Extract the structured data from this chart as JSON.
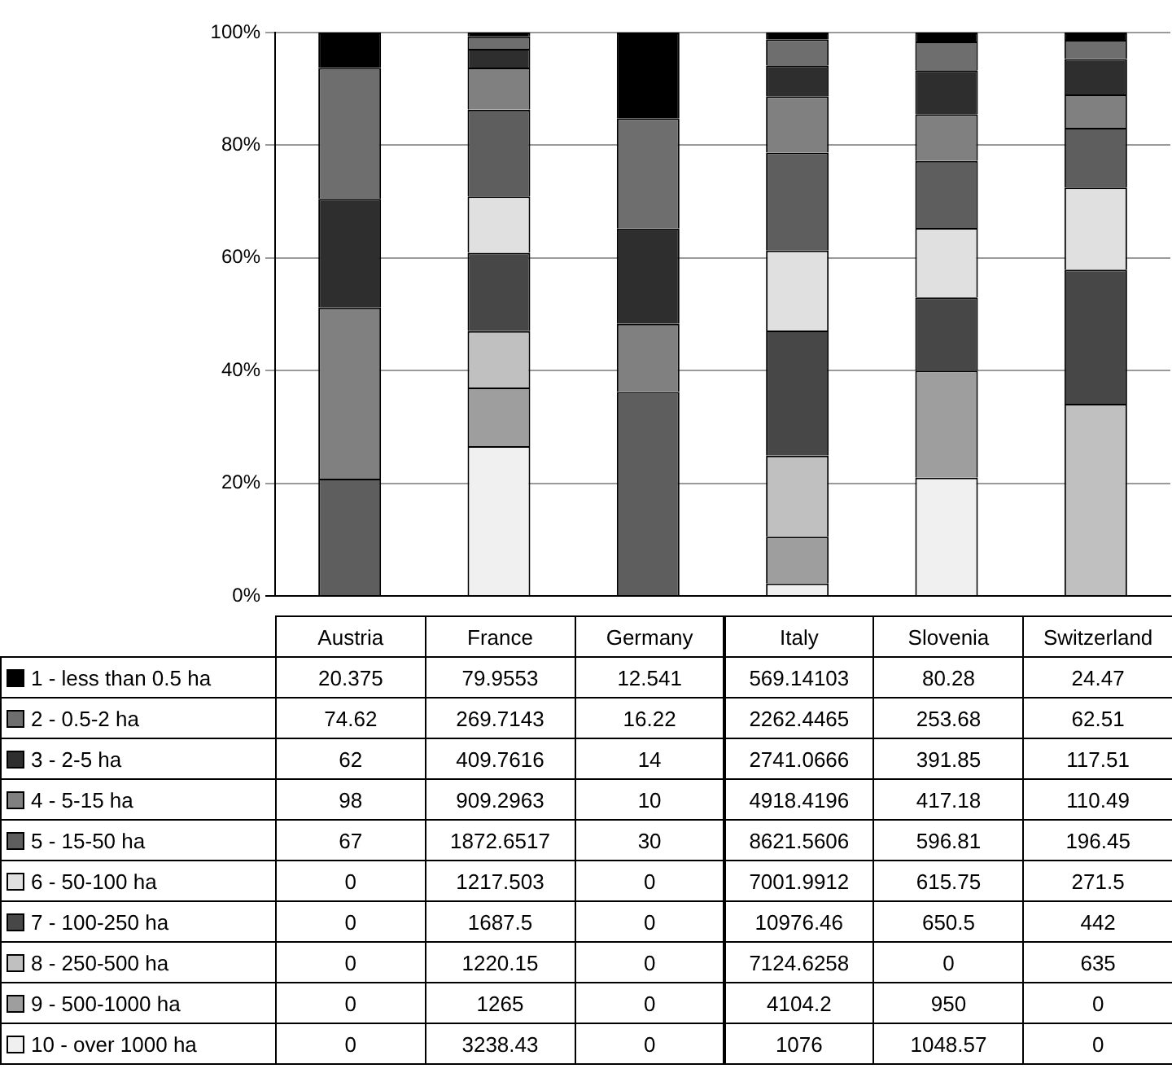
{
  "chart_data": [
    {
      "type": "bar",
      "stacked": true,
      "grid": "y",
      "categories": [
        null,
        null,
        null,
        null,
        null,
        null
      ],
      "ylim": [
        0,
        100
      ],
      "yticks": [
        {
          "value": 0,
          "label": "0%"
        },
        {
          "value": 20,
          "label": "20%"
        },
        {
          "value": 40,
          "label": "40%"
        },
        {
          "value": 60,
          "label": "60%"
        },
        {
          "value": 80,
          "label": "80%"
        },
        {
          "value": 100,
          "label": "100%"
        }
      ],
      "series": [
        {
          "color": "#f0f0f0",
          "values": [
            0,
            26.6,
            0,
            2.2,
            21.0,
            0
          ]
        },
        {
          "color": "#9e9e9e",
          "values": [
            0,
            10.4,
            0,
            8.3,
            19.0,
            0
          ]
        },
        {
          "color": "#c0c0c0",
          "values": [
            0,
            10.0,
            0,
            14.4,
            0,
            34.1
          ]
        },
        {
          "color": "#474747",
          "values": [
            0,
            13.9,
            0,
            22.2,
            13.0,
            23.8
          ]
        },
        {
          "color": "#e0e0e0",
          "values": [
            0,
            10.0,
            0,
            14.2,
            12.3,
            14.6
          ]
        },
        {
          "color": "#5e5e5e",
          "values": [
            20.8,
            15.4,
            36.2,
            17.4,
            11.9,
            10.6
          ]
        },
        {
          "color": "#808080",
          "values": [
            30.4,
            7.5,
            12.1,
            10.0,
            8.3,
            5.9
          ]
        },
        {
          "color": "#2e2e2e",
          "values": [
            19.3,
            3.3,
            16.9,
            5.5,
            7.8,
            6.3
          ]
        },
        {
          "color": "#6e6e6e",
          "values": [
            23.2,
            2.2,
            19.6,
            4.6,
            5.1,
            3.4
          ]
        },
        {
          "color": "#000000",
          "values": [
            6.3,
            0.7,
            15.2,
            1.2,
            1.6,
            1.3
          ]
        }
      ]
    },
    {
      "type": "other",
      "data_labels": true,
      "legend": "left",
      "categories": [
        "Austria",
        "France",
        "Germany",
        "Italy",
        "Slovenia",
        "Switzerland"
      ],
      "series": [
        {
          "name": "1 - less than 0.5 ha",
          "color": "#000000",
          "values": [
            20.375,
            79.9553,
            12.541,
            569.14103,
            80.28,
            24.47
          ]
        },
        {
          "name": "2 - 0.5-2 ha",
          "color": "#6e6e6e",
          "values": [
            74.62,
            269.7143,
            16.22,
            2262.4465,
            253.68,
            62.51
          ]
        },
        {
          "name": "3 - 2-5 ha",
          "color": "#2e2e2e",
          "values": [
            62,
            409.7616,
            14,
            2741.0666,
            391.85,
            117.51
          ]
        },
        {
          "name": "4 - 5-15 ha",
          "color": "#808080",
          "values": [
            98,
            909.2963,
            10,
            4918.4196,
            417.18,
            110.49
          ]
        },
        {
          "name": "5 - 15-50 ha",
          "color": "#5e5e5e",
          "values": [
            67,
            1872.6517,
            30,
            8621.5606,
            596.81,
            196.45
          ]
        },
        {
          "name": "6 - 50-100 ha",
          "color": "#e0e0e0",
          "values": [
            0,
            1217.503,
            0,
            7001.9912,
            615.75,
            271.5
          ]
        },
        {
          "name": "7 - 100-250 ha",
          "color": "#474747",
          "values": [
            0,
            1687.5,
            0,
            10976.46,
            650.5,
            442
          ]
        },
        {
          "name": "8 - 250-500 ha",
          "color": "#c0c0c0",
          "values": [
            0,
            1220.15,
            0,
            7124.6258,
            0,
            635
          ]
        },
        {
          "name": "9 - 500-1000 ha",
          "color": "#9e9e9e",
          "values": [
            0,
            1265,
            0,
            4104.2,
            950,
            0
          ]
        },
        {
          "name": "10 - over 1000 ha",
          "color": "#f0f0f0",
          "values": [
            0,
            3238.43,
            0,
            1076,
            1048.57,
            0
          ]
        }
      ]
    }
  ]
}
